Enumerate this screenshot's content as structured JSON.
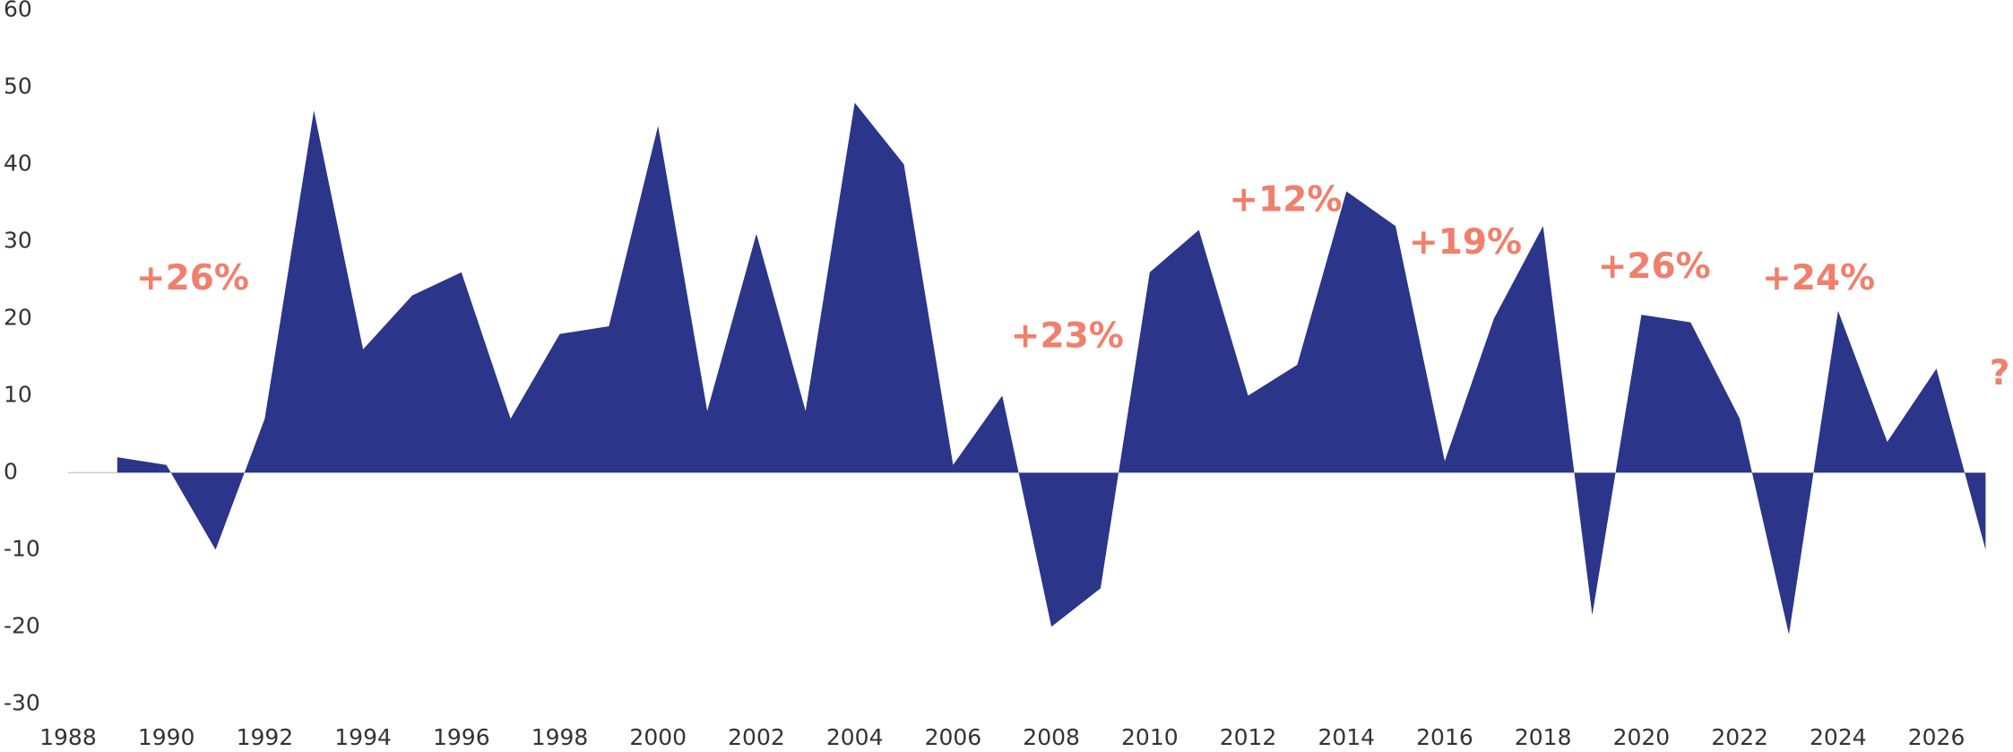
{
  "chart_data": {
    "type": "area",
    "x": [
      1989,
      1990,
      1991,
      1992,
      1993,
      1994,
      1995,
      1996,
      1997,
      1998,
      1999,
      2000,
      2001,
      2002,
      2003,
      2004,
      2005,
      2006,
      2007,
      2008,
      2009,
      2010,
      2011,
      2012,
      2013,
      2014,
      2015,
      2016,
      2017,
      2018,
      2019,
      2020,
      2021,
      2022,
      2023,
      2024,
      2025,
      2026,
      2027
    ],
    "values": [
      2,
      1,
      -10,
      7,
      47,
      16,
      23,
      26,
      7,
      18,
      19,
      45,
      8,
      31,
      8,
      48,
      40,
      1,
      10,
      -20,
      -15,
      26,
      31.5,
      10,
      14,
      36.5,
      32,
      1.5,
      20,
      32,
      -18.5,
      20.5,
      19.5,
      7,
      -21,
      21,
      4,
      13.5,
      -10
    ],
    "color": "#2b3589",
    "xlim": [
      1988,
      2027
    ],
    "xticks": [
      1988,
      1990,
      1992,
      1994,
      1996,
      1998,
      2000,
      2002,
      2004,
      2006,
      2008,
      2010,
      2012,
      2014,
      2016,
      2018,
      2020,
      2022,
      2024,
      2026
    ],
    "ylim": [
      -30,
      60
    ],
    "yticks": [
      -30,
      -20,
      -10,
      0,
      10,
      20,
      30,
      40,
      50,
      60
    ],
    "annotations": [
      "+26%",
      "+23%",
      "+12%",
      "+19%",
      "+26%",
      "+24%",
      "?"
    ],
    "annotation_color": "#f07f6c"
  }
}
